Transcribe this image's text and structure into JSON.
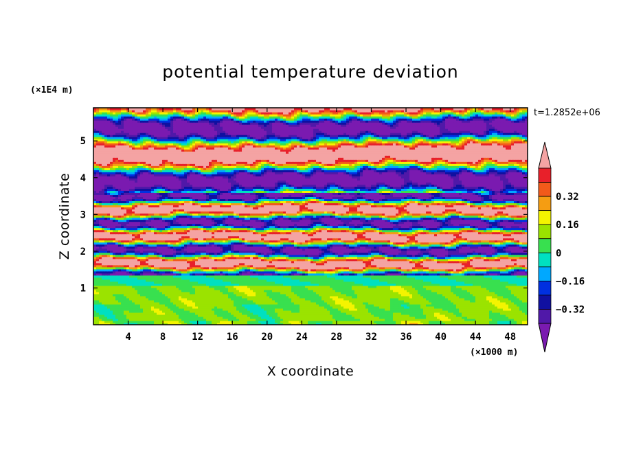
{
  "chart_data": {
    "type": "heatmap",
    "title": "potential temperature deviation",
    "xlabel": "X coordinate",
    "ylabel": "Z coordinate",
    "x_unit": "(×1000 m)",
    "y_unit": "(×1E4 m)",
    "time_label": "t=1.2852e+06",
    "xlim": [
      0,
      50
    ],
    "ylim": [
      0,
      5.9
    ],
    "x_ticks": [
      4,
      8,
      12,
      16,
      20,
      24,
      28,
      32,
      36,
      40,
      44,
      48
    ],
    "y_ticks": [
      1,
      2,
      3,
      4,
      5
    ],
    "colorbar": {
      "levels": [
        -0.48,
        -0.4,
        -0.32,
        -0.24,
        -0.16,
        -0.08,
        0,
        0.08,
        0.16,
        0.24,
        0.32,
        0.4,
        0.48
      ],
      "labeled_levels": [
        0.32,
        0.16,
        0,
        -0.16,
        -0.32
      ],
      "labels": [
        "0.32",
        "0.16",
        "0",
        "−0.16",
        "−0.32"
      ],
      "colors_top_to_bottom": [
        "#f4a3a3",
        "#e8202a",
        "#f25a1a",
        "#f59d12",
        "#f4f400",
        "#9be300",
        "#38e04f",
        "#00e0c0",
        "#00a8ff",
        "#0030e0",
        "#1010a0",
        "#5018a8",
        "#7a1ab0"
      ],
      "extend": "both"
    },
    "layers_z": [
      {
        "from": 0.0,
        "to": 0.15,
        "dominant": "light-green/yellow"
      },
      {
        "from": 0.15,
        "to": 1.05,
        "dominant": "green/cyan"
      },
      {
        "from": 1.05,
        "to": 1.3,
        "dominant": "cyan/green"
      },
      {
        "from": 1.3,
        "to": 3.6,
        "dominant": "mixed (blue/purple/green/yellow/orange/pink)"
      },
      {
        "from": 3.6,
        "to": 5.9,
        "dominant": "alternating pink and purple bands"
      }
    ]
  }
}
